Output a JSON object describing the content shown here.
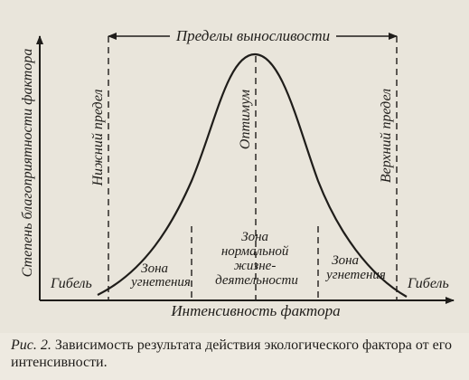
{
  "diagram": {
    "top_range_label": "Пределы выносливости",
    "y_axis_label": "Степень благоприятности фактора",
    "x_axis_label": "Интенсивность фактора",
    "lower_limit_label": "Нижний предел",
    "upper_limit_label": "Верхний предел",
    "optimum_label": "Оптимум",
    "death_left": "Гибель",
    "death_right": "Гибель",
    "zone_left": [
      "Зона",
      "угнетения"
    ],
    "zone_right": [
      "Зона",
      "угнетения"
    ],
    "zone_center": [
      "Зона",
      "нормальной",
      "жизне-",
      "деятельности"
    ]
  },
  "caption": {
    "label": "Рис. 2.",
    "text": "Зависимость результата действия экологического фактора от его интенсивности."
  }
}
